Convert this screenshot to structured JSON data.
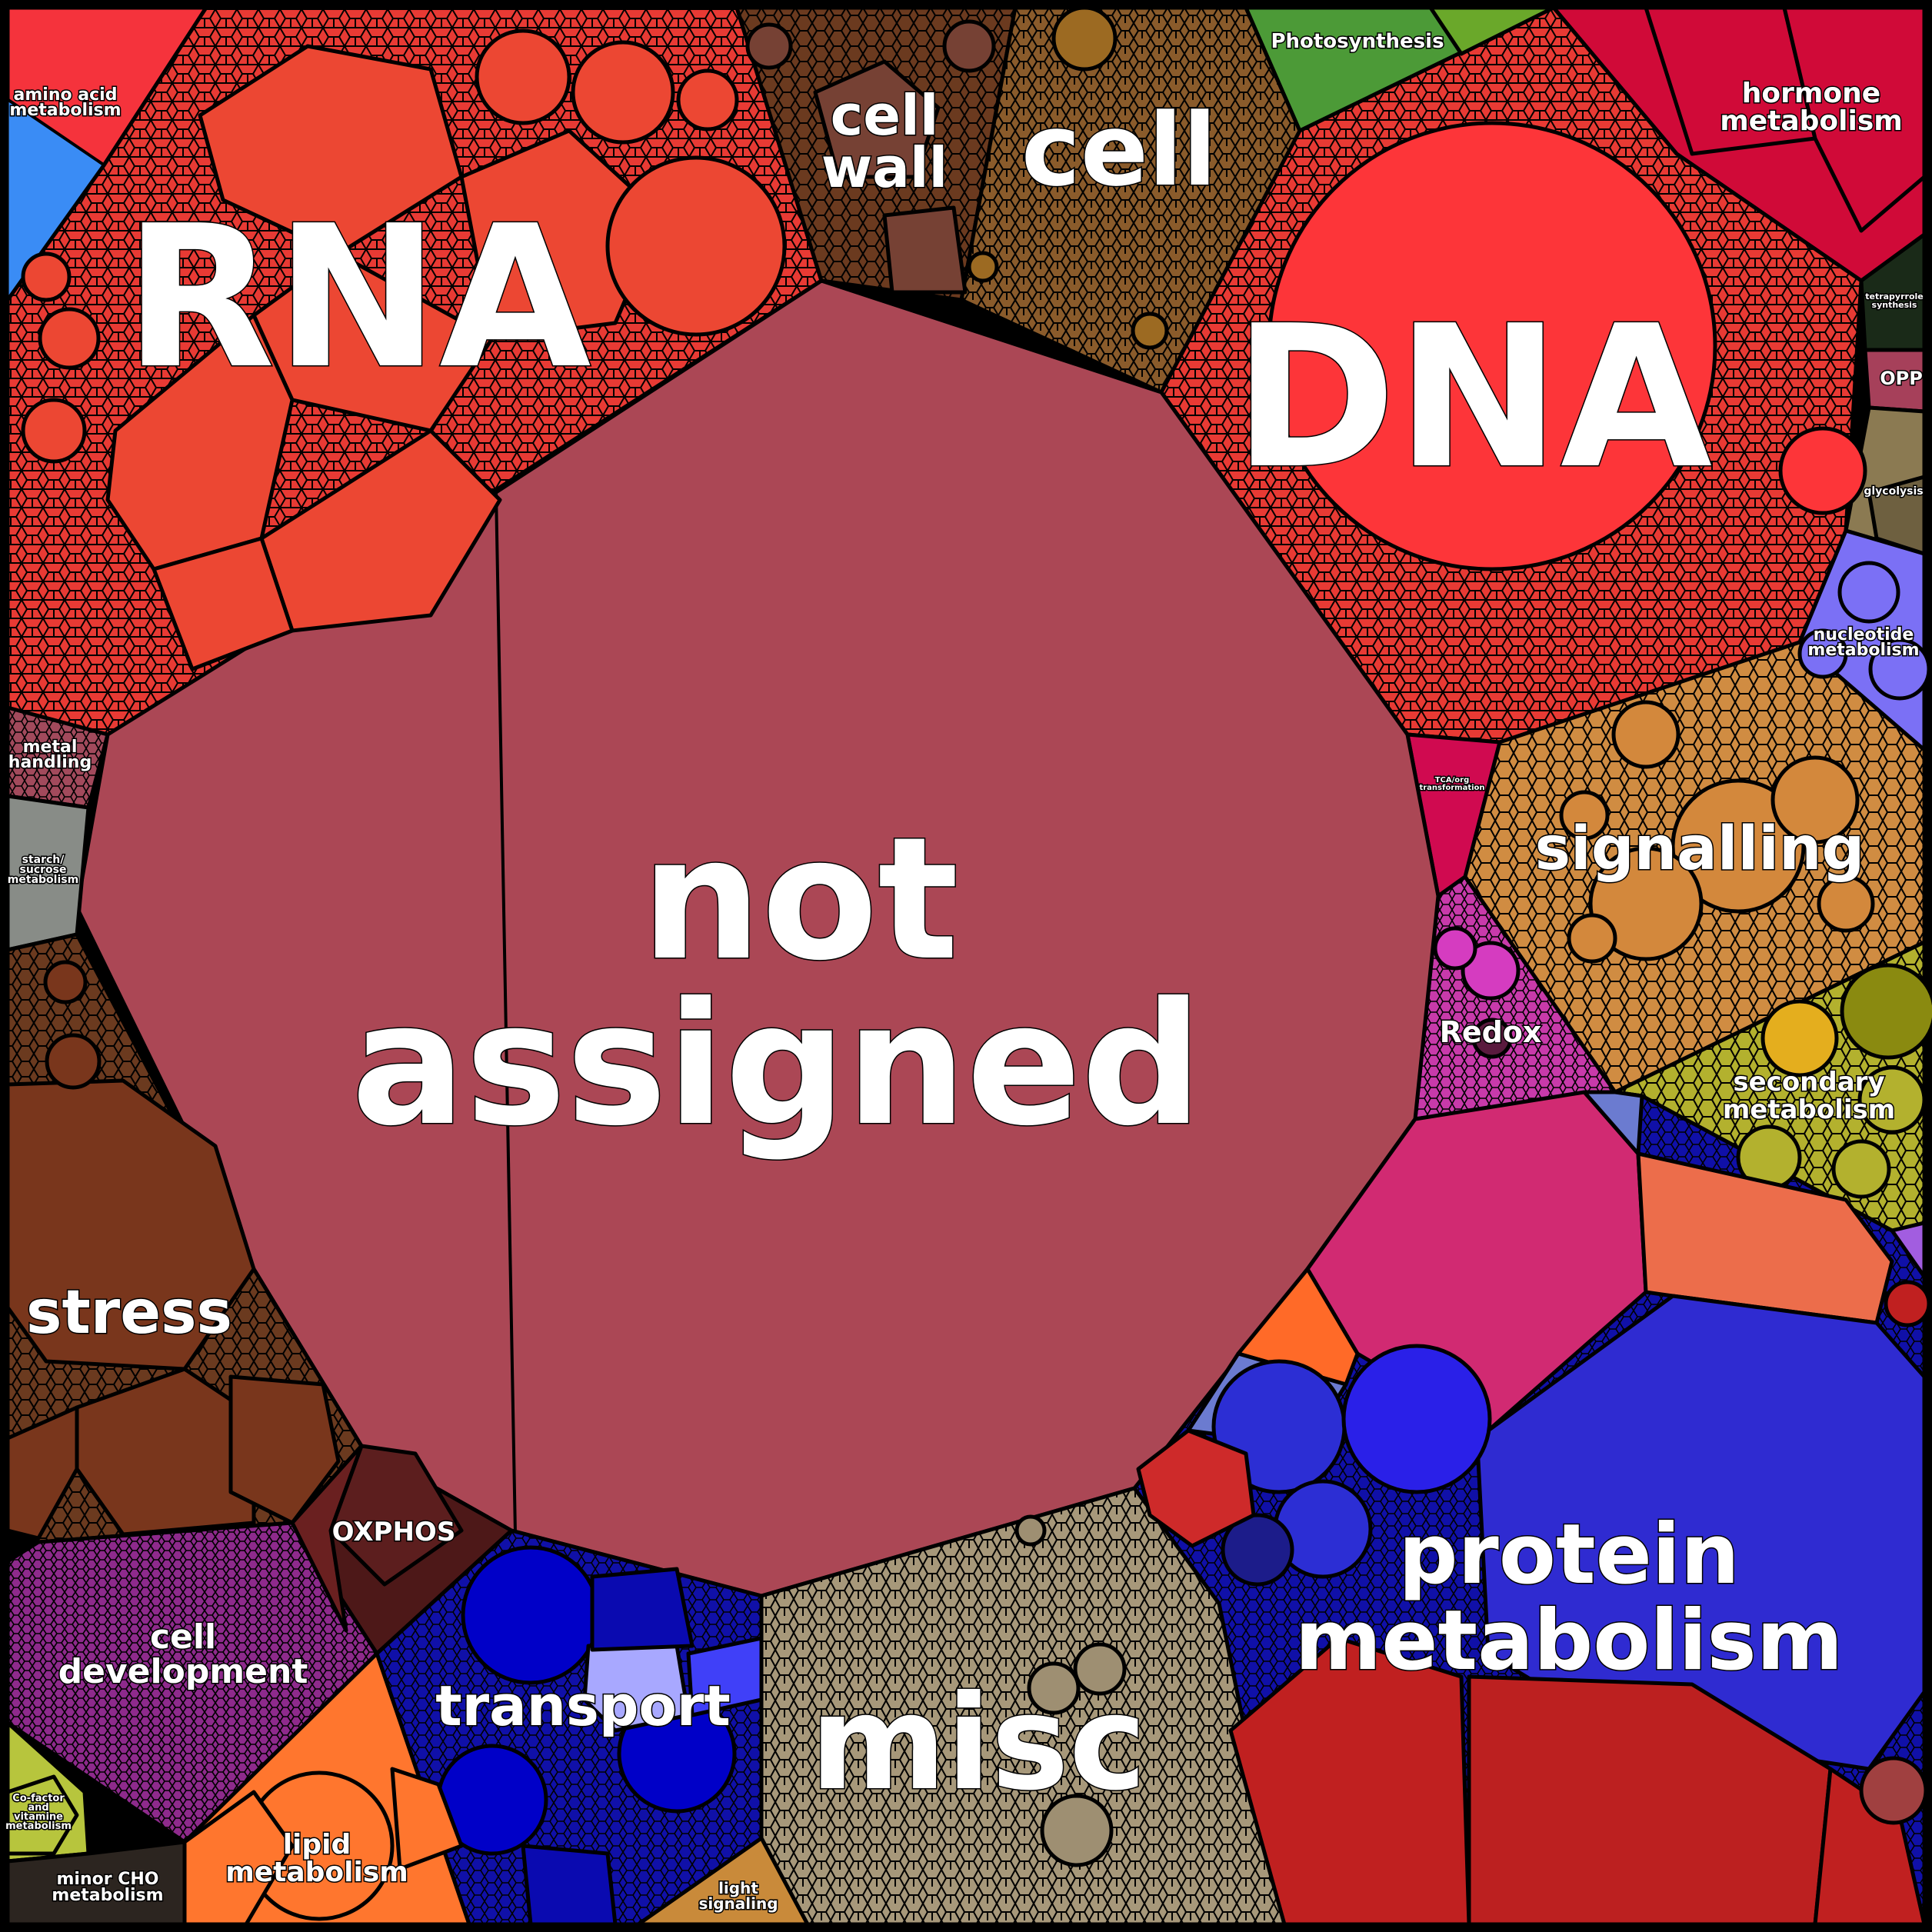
{
  "treemap": {
    "regions": [
      {
        "id": "amino-acid-metabolism",
        "label": "amino acid\nmetabolism",
        "color": "#f5333c"
      },
      {
        "id": "rna",
        "label": "RNA",
        "color": "#e94530"
      },
      {
        "id": "cell-wall",
        "label": "cell\nwall",
        "color": "#764134"
      },
      {
        "id": "cell",
        "label": "cell",
        "color": "#8a5a2c"
      },
      {
        "id": "photosynthesis",
        "label": "Photosynthesis",
        "color": "#4c9a37"
      },
      {
        "id": "hormone-metabolism",
        "label": "hormone\nmetabolism",
        "color": "#d00a38"
      },
      {
        "id": "dna",
        "label": "DNA",
        "color": "#fd3539"
      },
      {
        "id": "tetrapyrrole-synthesis",
        "label": "tetrapyrrole\nsynthesis",
        "color": "#1a2a18"
      },
      {
        "id": "opp",
        "label": "OPP",
        "color": "#a6405a"
      },
      {
        "id": "glycolysis",
        "label": "glycolysis",
        "color": "#8b7a52"
      },
      {
        "id": "nucleotide-metabolism",
        "label": "nucleotide\nmetabolism",
        "color": "#7b70f5"
      },
      {
        "id": "tca-org-transformation",
        "label": "TCA/org\ntransformation",
        "color": "#d00a50"
      },
      {
        "id": "signalling",
        "label": "signalling",
        "color": "#d3883c"
      },
      {
        "id": "redox",
        "label": "Redox",
        "color": "#d53cc0"
      },
      {
        "id": "secondary-metabolism",
        "label": "secondary\nmetabolism",
        "color": "#b3b12e"
      },
      {
        "id": "not-assigned",
        "label": "not\nassigned",
        "color": "#ab4755"
      },
      {
        "id": "metal-handling",
        "label": "metal\nhandling",
        "color": "#9b4258"
      },
      {
        "id": "starch-sucrose-metabolism",
        "label": "starch/\nsucrose\nmetabolism",
        "color": "#888c87"
      },
      {
        "id": "stress",
        "label": "stress",
        "color": "#79361c"
      },
      {
        "id": "oxphos",
        "label": "OXPHOS",
        "color": "#4d1818"
      },
      {
        "id": "cell-development",
        "label": "cell\ndevelopment",
        "color": "#8a2d86"
      },
      {
        "id": "transport",
        "label": "transport",
        "color": "#0000b4"
      },
      {
        "id": "misc",
        "label": "misc",
        "color": "#9e8f72"
      },
      {
        "id": "protein-metabolism",
        "label": "protein\nmetabolism",
        "color": "#2f2bd1"
      },
      {
        "id": "lipid-metabolism",
        "label": "lipid\nmetabolism",
        "color": "#ff762e"
      },
      {
        "id": "light-signaling",
        "label": "light\nsignaling",
        "color": "#c98a3a"
      },
      {
        "id": "minor-cho-metabolism",
        "label": "minor CHO\nmetabolism",
        "color": "#2c2520"
      },
      {
        "id": "co-factor-vitamine-metabolism",
        "label": "Co-factor\nand\nvitamine\nmetabolism",
        "color": "#b7c53d"
      }
    ]
  }
}
